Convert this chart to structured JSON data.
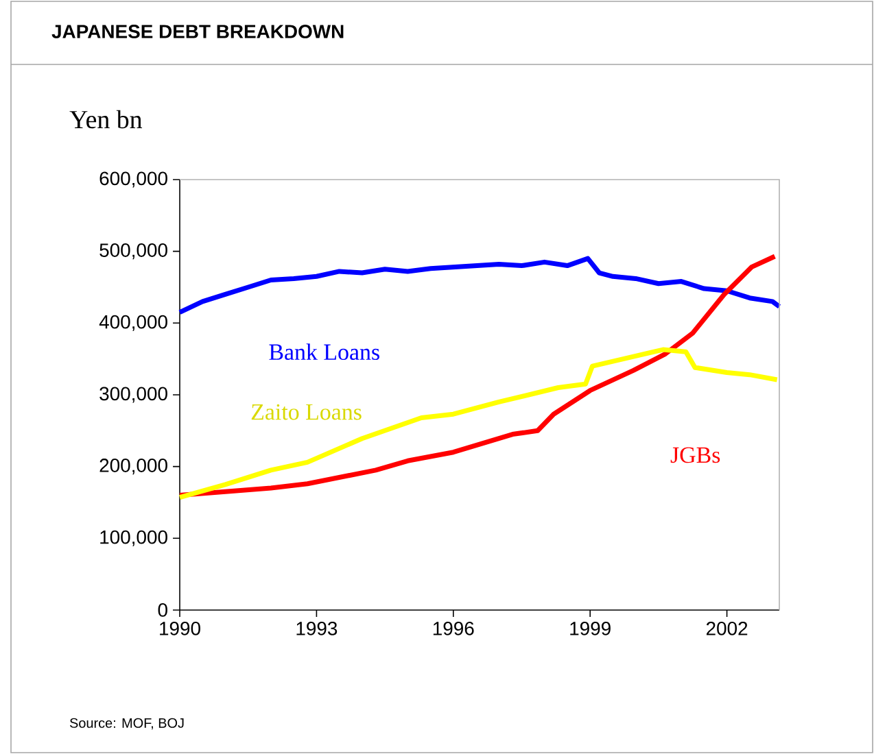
{
  "chart_data": {
    "type": "line",
    "title": "JAPANESE DEBT BREAKDOWN",
    "ylabel": "Yen bn",
    "annotations": [
      "Source:  MOF, BOJ"
    ],
    "xlim": [
      1990,
      2003.15
    ],
    "xticks": [
      1990,
      1993,
      1996,
      1999,
      2002
    ],
    "ylim": [
      0,
      600000
    ],
    "yticks": [
      {
        "value": 0,
        "label": "0"
      },
      {
        "value": 100000,
        "label": "100,000"
      },
      {
        "value": 200000,
        "label": "200,000"
      },
      {
        "value": 300000,
        "label": "300,000"
      },
      {
        "value": 400000,
        "label": "400,000"
      },
      {
        "value": 500000,
        "label": "500,000"
      },
      {
        "value": 600000,
        "label": "600,000"
      }
    ],
    "series": [
      {
        "name": "Bank Loans",
        "color": "#0000ff",
        "x": [
          1990,
          1990.5,
          1991,
          1991.5,
          1992,
          1992.5,
          1993,
          1993.5,
          1994,
          1994.5,
          1995,
          1995.5,
          1996,
          1996.5,
          1997,
          1997.5,
          1998,
          1998.5,
          1998.95,
          1999.2,
          1999.5,
          2000,
          2000.5,
          2001,
          2001.5,
          2002,
          2002.5,
          2003,
          2003.15
        ],
        "values": [
          415000,
          430000,
          440000,
          450000,
          460000,
          462000,
          465000,
          472000,
          470000,
          475000,
          472000,
          476000,
          478000,
          480000,
          482000,
          480000,
          485000,
          480000,
          490000,
          470000,
          465000,
          462000,
          455000,
          458000,
          448000,
          445000,
          435000,
          430000,
          423000
        ]
      },
      {
        "name": "JGBs",
        "color": "#ff0000",
        "x": [
          1990,
          1991,
          1992,
          1992.8,
          1994.3,
          1995,
          1996,
          1997.3,
          1997.85,
          1998.2,
          1999,
          1999.95,
          2000.65,
          2001.25,
          2001.94,
          2002.54,
          2003.05
        ],
        "values": [
          160000,
          165000,
          170000,
          176000,
          195000,
          208000,
          220000,
          245000,
          250000,
          273000,
          306000,
          334000,
          357000,
          386000,
          440000,
          478000,
          493000
        ]
      },
      {
        "name": "Zaito Loans",
        "color": "#ffff00",
        "x": [
          1990,
          1991,
          1992,
          1992.8,
          1994,
          1995.3,
          1996,
          1997,
          1998.3,
          1998.9,
          1999.05,
          2000,
          2000.6,
          2001.1,
          2001.3,
          2002,
          2002.5,
          2003.1
        ],
        "values": [
          157000,
          175000,
          195000,
          206000,
          239000,
          268000,
          273000,
          290000,
          310000,
          315000,
          340000,
          354000,
          363000,
          360000,
          338000,
          331000,
          328000,
          321000
        ]
      }
    ]
  }
}
